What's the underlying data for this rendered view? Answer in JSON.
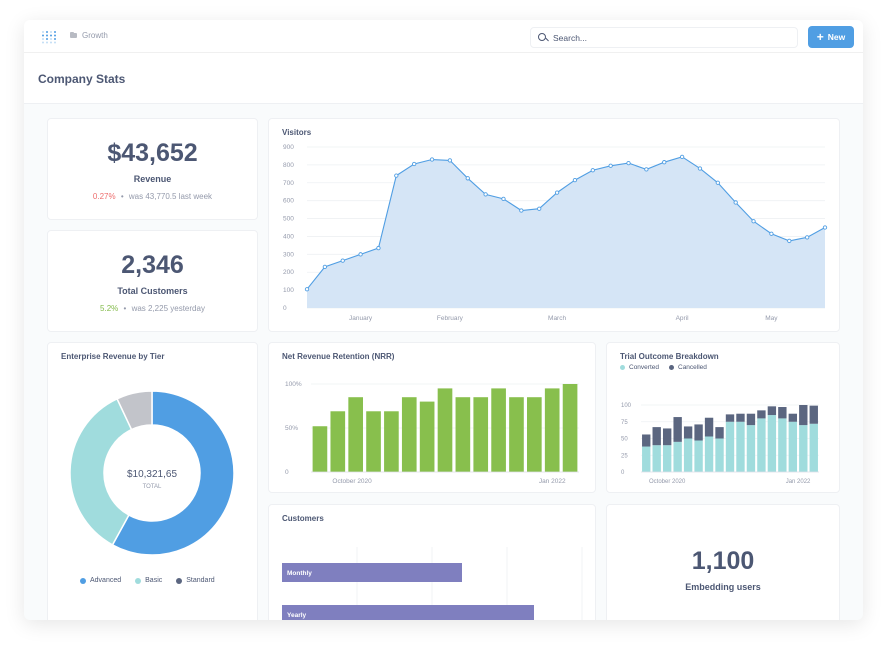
{
  "nav": {
    "breadcrumb": "Growth",
    "search_placeholder": "Search...",
    "new_label": "New"
  },
  "page": {
    "title": "Company Stats"
  },
  "colors": {
    "accent": "#509ee3",
    "negative": "#ed6e6e",
    "positive": "#84bb4c",
    "area": "#d5e5f6",
    "bar_green": "#88bf4d",
    "teal": "#a0dcdd",
    "navy": "#5b6680"
  },
  "revenue": {
    "value": "$43,652",
    "label": "Revenue",
    "change": "0.27%",
    "compare": "was 43,770.5 last week",
    "separator": "•"
  },
  "customers_stat": {
    "value": "2,346",
    "label": "Total Customers",
    "change": "5.2%",
    "compare": "was 2,225 yesterday",
    "separator": "•"
  },
  "embedding": {
    "value": "1,100",
    "label": "Embedding users"
  },
  "chart_data": [
    {
      "id": "visitors",
      "type": "area",
      "title": "Visitors",
      "y_ticks": [
        "900",
        "800",
        "700",
        "600",
        "500",
        "400",
        "300",
        "200",
        "100",
        "0"
      ],
      "ylim": [
        0,
        900
      ],
      "x_labels": [
        "January",
        "February",
        "March",
        "April",
        "May"
      ],
      "x_label_index": [
        3,
        8,
        14,
        21,
        26
      ],
      "values": [
        105,
        230,
        265,
        300,
        335,
        740,
        805,
        830,
        825,
        725,
        635,
        610,
        545,
        555,
        645,
        715,
        770,
        795,
        810,
        775,
        815,
        845,
        780,
        700,
        590,
        485,
        415,
        375,
        395,
        450
      ]
    },
    {
      "id": "nrr",
      "type": "bar",
      "title": "Net Revenue Retention (NRR)",
      "y_ticks": [
        "100%",
        "50%",
        "0"
      ],
      "ylim": [
        0,
        100
      ],
      "x_labels": [
        "October 2020",
        "Jan 2022"
      ],
      "values": [
        52,
        69,
        85,
        69,
        69,
        85,
        80,
        95,
        85,
        85,
        95,
        85,
        85,
        95,
        100
      ]
    },
    {
      "id": "trial_outcome",
      "type": "bar",
      "stacked": true,
      "title": "Trial Outcome Breakdown",
      "y_ticks": [
        "100",
        "75",
        "50",
        "25",
        "0"
      ],
      "ylim": [
        0,
        100
      ],
      "legend": [
        "Converted",
        "Cancelled"
      ],
      "x_labels": [
        "October 2020",
        "Jan 2022"
      ],
      "series": [
        {
          "name": "Converted",
          "values": [
            38,
            40,
            40,
            45,
            50,
            47,
            53,
            50,
            75,
            75,
            70,
            80,
            85,
            80,
            75,
            70,
            72
          ]
        },
        {
          "name": "Cancelled",
          "values": [
            18,
            27,
            25,
            37,
            18,
            24,
            28,
            17,
            11,
            12,
            17,
            12,
            13,
            17,
            12,
            30,
            27
          ]
        }
      ]
    },
    {
      "id": "enterprise_tier",
      "type": "pie",
      "title": "Enterprise Revenue by Tier",
      "center_value": "$10,321,65",
      "center_label": "TOTAL",
      "legend": [
        "Advanced",
        "Basic",
        "Standard"
      ],
      "values": [
        58,
        35,
        7
      ]
    },
    {
      "id": "customers",
      "type": "bar",
      "orientation": "horizontal",
      "title": "Customers",
      "categories": [
        "Monthly",
        "Yearly"
      ],
      "values": [
        60,
        84
      ],
      "xlim": [
        0,
        100
      ]
    }
  ]
}
